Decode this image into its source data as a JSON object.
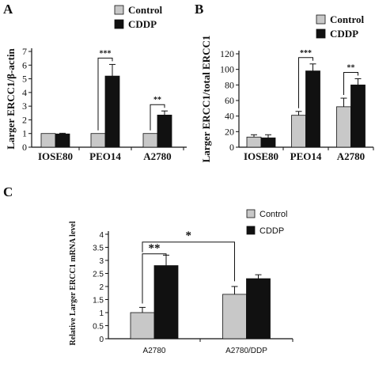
{
  "colors": {
    "control": "#c8c8c8",
    "cddp": "#111111",
    "axis": "#111111"
  },
  "chart_data": [
    {
      "type": "bar",
      "panel": "A",
      "xlabel": "",
      "ylabel": "Larger ERCC1/β-actin",
      "categories": [
        "IOSE80",
        "PEO14",
        "A2780"
      ],
      "yticks": [
        "0",
        "1",
        "2",
        "3",
        "4",
        "5",
        "6",
        "7"
      ],
      "ylim": [
        0,
        7
      ],
      "legend_placement": "top-right",
      "series": [
        {
          "name": "Control",
          "values": [
            1.0,
            1.0,
            1.0
          ],
          "errors": [
            0.0,
            0.0,
            0.0
          ]
        },
        {
          "name": "CDDP",
          "values": [
            0.97,
            5.2,
            2.35
          ],
          "errors": [
            0.05,
            0.85,
            0.3
          ]
        }
      ],
      "annotations": [
        {
          "category": "PEO14",
          "text": "***"
        },
        {
          "category": "A2780",
          "text": "**"
        }
      ]
    },
    {
      "type": "bar",
      "panel": "B",
      "xlabel": "",
      "ylabel": "Larger ERCC1/total ERCC1",
      "categories": [
        "IOSE80",
        "PEO14",
        "A2780"
      ],
      "yticks": [
        "0",
        "20",
        "40",
        "60",
        "80",
        "100",
        "120"
      ],
      "ylim": [
        0,
        120
      ],
      "legend_placement": "top-right",
      "series": [
        {
          "name": "Control",
          "values": [
            13,
            41,
            52
          ],
          "errors": [
            3,
            5,
            11
          ]
        },
        {
          "name": "CDDP",
          "values": [
            12,
            98,
            80
          ],
          "errors": [
            4,
            9,
            8
          ]
        }
      ],
      "annotations": [
        {
          "category": "PEO14",
          "text": "***"
        },
        {
          "category": "A2780",
          "text": "**"
        }
      ]
    },
    {
      "type": "bar",
      "panel": "C",
      "xlabel": "",
      "ylabel": "Relative Larger ERCC1 mRNA level",
      "categories": [
        "A2780",
        "A2780/DDP"
      ],
      "yticks": [
        "0",
        "0.5",
        "1",
        "1.5",
        "2",
        "2.5",
        "3",
        "3.5",
        "4"
      ],
      "ylim": [
        0,
        4
      ],
      "legend_placement": "top-right",
      "series": [
        {
          "name": "Control",
          "values": [
            1.0,
            1.7
          ],
          "errors": [
            0.2,
            0.3
          ]
        },
        {
          "name": "CDDP",
          "values": [
            2.8,
            2.3
          ],
          "errors": [
            0.4,
            0.15
          ]
        }
      ],
      "annotations": [
        {
          "text": "**",
          "between": "A2780 Control vs A2780 CDDP"
        },
        {
          "text": "*",
          "between": "A2780 Control vs A2780/DDP Control"
        }
      ]
    }
  ]
}
